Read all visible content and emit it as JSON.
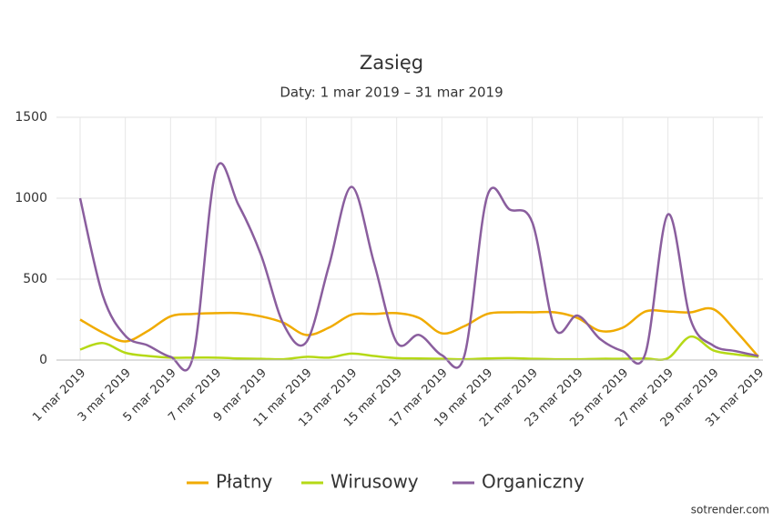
{
  "chart_data": {
    "type": "line",
    "title": "Zasięg",
    "subtitle": "Daty: 1 mar 2019 – 31 mar 2019",
    "categories": [
      "1 mar 2019",
      null,
      "3 mar 2019",
      null,
      "5 mar 2019",
      null,
      "7 mar 2019",
      null,
      "9 mar 2019",
      null,
      "11 mar 2019",
      null,
      "13 mar 2019",
      null,
      "15 mar 2019",
      null,
      "17 mar 2019",
      null,
      "19 mar 2019",
      null,
      "21 mar 2019",
      null,
      "23 mar 2019",
      null,
      "25 mar 2019",
      null,
      "27 mar 2019",
      null,
      "29 mar 2019",
      null,
      "31 mar 2019"
    ],
    "series": [
      {
        "name": "Płatny",
        "color": "#f0ab00",
        "values": [
          250,
          170,
          115,
          180,
          270,
          285,
          290,
          290,
          270,
          230,
          155,
          200,
          280,
          285,
          290,
          260,
          165,
          210,
          285,
          295,
          295,
          295,
          260,
          180,
          200,
          300,
          300,
          295,
          315,
          180,
          20
        ]
      },
      {
        "name": "Wirusowy",
        "color": "#b5d916",
        "values": [
          65,
          105,
          45,
          25,
          15,
          15,
          15,
          10,
          8,
          5,
          20,
          15,
          40,
          25,
          12,
          10,
          8,
          5,
          10,
          12,
          8,
          5,
          5,
          8,
          8,
          10,
          12,
          145,
          60,
          35,
          20
        ]
      },
      {
        "name": "Organiczny",
        "color": "#8a5e9e",
        "values": [
          1000,
          400,
          150,
          90,
          20,
          25,
          1170,
          960,
          650,
          220,
          110,
          580,
          1070,
          600,
          110,
          155,
          30,
          30,
          1010,
          930,
          850,
          195,
          275,
          130,
          55,
          40,
          900,
          250,
          90,
          55,
          25
        ]
      }
    ],
    "ylim": [
      0,
      1500
    ],
    "yticks": [
      0,
      500,
      1000,
      1500
    ],
    "grid": true,
    "footer": "sotrender.com"
  }
}
